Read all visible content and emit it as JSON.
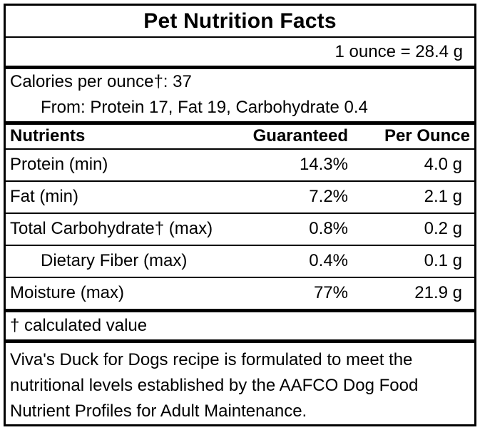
{
  "title": "Pet Nutrition Facts",
  "serving_note": "1 ounce = 28.4 g",
  "calories": {
    "per_ounce_line": "Calories per ounce†: 37",
    "from_line": "From: Protein 17, Fat 19, Carbohydrate 0.4"
  },
  "table": {
    "headers": {
      "nutrients": "Nutrients",
      "guaranteed": "Guaranteed",
      "per_ounce": "Per Ounce"
    },
    "rows": [
      {
        "name": "Protein (min)",
        "guaranteed": "14.3%",
        "per_ounce": "4.0 g",
        "indent": false
      },
      {
        "name": "Fat (min)",
        "guaranteed": "7.2%",
        "per_ounce": "2.1 g",
        "indent": false
      },
      {
        "name": "Total Carbohydrate† (max)",
        "guaranteed": "0.8%",
        "per_ounce": "0.2 g",
        "indent": false
      },
      {
        "name": "Dietary Fiber (max)",
        "guaranteed": "0.4%",
        "per_ounce": "0.1 g",
        "indent": true
      },
      {
        "name": "Moisture (max)",
        "guaranteed": "77%",
        "per_ounce": "21.9 g",
        "indent": false
      }
    ]
  },
  "footnote": "† calculated value",
  "statement": "Viva's Duck for Dogs recipe is formulated to meet the nutritional levels established by the AAFCO Dog Food Nutrient Profiles for Adult Maintenance.",
  "colors": {
    "border": "#000000",
    "background": "#ffffff",
    "text": "#000000"
  }
}
